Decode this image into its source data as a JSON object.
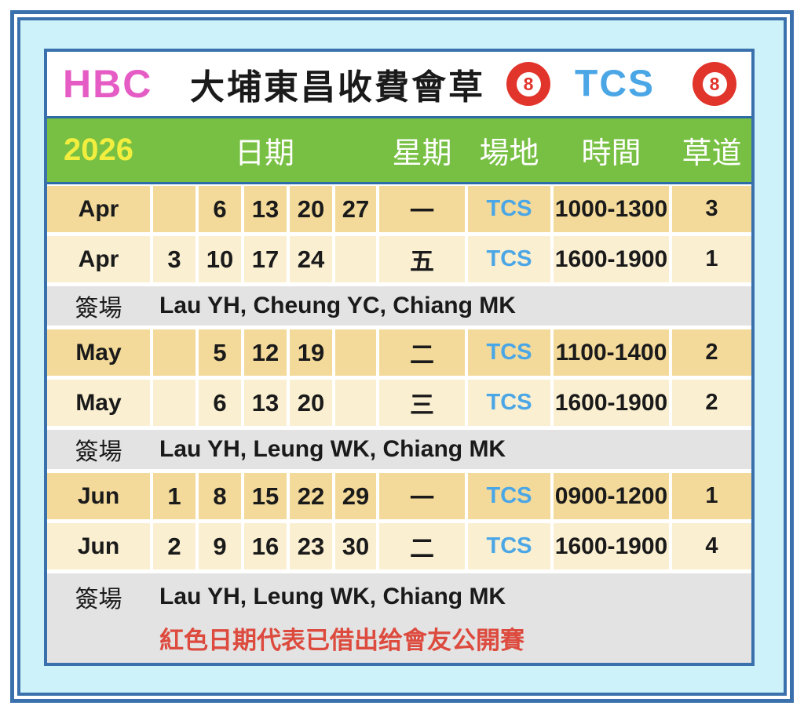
{
  "header": {
    "club_abbrev": "HBC",
    "title": "大埔東昌收費會草",
    "venue_abbrev": "TCS",
    "ball_number": "8"
  },
  "table_header": {
    "year": "2026",
    "date": "日期",
    "weekday": "星期",
    "venue": "場地",
    "time": "時間",
    "lane": "草道"
  },
  "rows": [
    {
      "type": "schedule",
      "shade": "dark",
      "month": "Apr",
      "dates": [
        "",
        "6",
        "13",
        "20",
        "27"
      ],
      "weekday": "一",
      "venue": "TCS",
      "time": "1000-1300",
      "lane": "3"
    },
    {
      "type": "schedule",
      "shade": "light",
      "month": "Apr",
      "dates": [
        "3",
        "10",
        "17",
        "24",
        ""
      ],
      "weekday": "五",
      "venue": "TCS",
      "time": "1600-1900",
      "lane": "1"
    },
    {
      "type": "signup",
      "label": "簽場",
      "names": "Lau YH, Cheung YC, Chiang MK"
    },
    {
      "type": "schedule",
      "shade": "dark",
      "month": "May",
      "dates": [
        "",
        "5",
        "12",
        "19",
        ""
      ],
      "weekday": "二",
      "venue": "TCS",
      "time": "1100-1400",
      "lane": "2"
    },
    {
      "type": "schedule",
      "shade": "light",
      "month": "May",
      "dates": [
        "",
        "6",
        "13",
        "20",
        ""
      ],
      "weekday": "三",
      "venue": "TCS",
      "time": "1600-1900",
      "lane": "2"
    },
    {
      "type": "signup",
      "label": "簽場",
      "names": "Lau YH, Leung WK, Chiang MK"
    },
    {
      "type": "schedule",
      "shade": "dark",
      "month": "Jun",
      "dates": [
        "1",
        "8",
        "15",
        "22",
        "29"
      ],
      "weekday": "一",
      "venue": "TCS",
      "time": "0900-1200",
      "lane": "1"
    },
    {
      "type": "schedule",
      "shade": "light",
      "month": "Jun",
      "dates": [
        "2",
        "9",
        "16",
        "23",
        "30"
      ],
      "weekday": "二",
      "venue": "TCS",
      "time": "1600-1900",
      "lane": "4"
    },
    {
      "type": "footer",
      "label": "簽場",
      "names": "Lau YH, Leung WK, Chiang MK",
      "note": "紅色日期代表已借出给會友公開賽"
    }
  ],
  "colors": {
    "frame_blue": "#3a71ad",
    "divider_blue": "#2e6ca6",
    "background_cyan": "#cdf2fa",
    "header_green": "#78c043",
    "year_yellow": "#f2ee3f",
    "club_pink": "#e55cc5",
    "venue_blue": "#4ba6e6",
    "ball_red": "#e1342b",
    "row_dark_tan": "#f3da9a",
    "row_light_cream": "#faefd1",
    "signup_gray": "#e3e3e3",
    "note_red": "#dd4a3e"
  }
}
